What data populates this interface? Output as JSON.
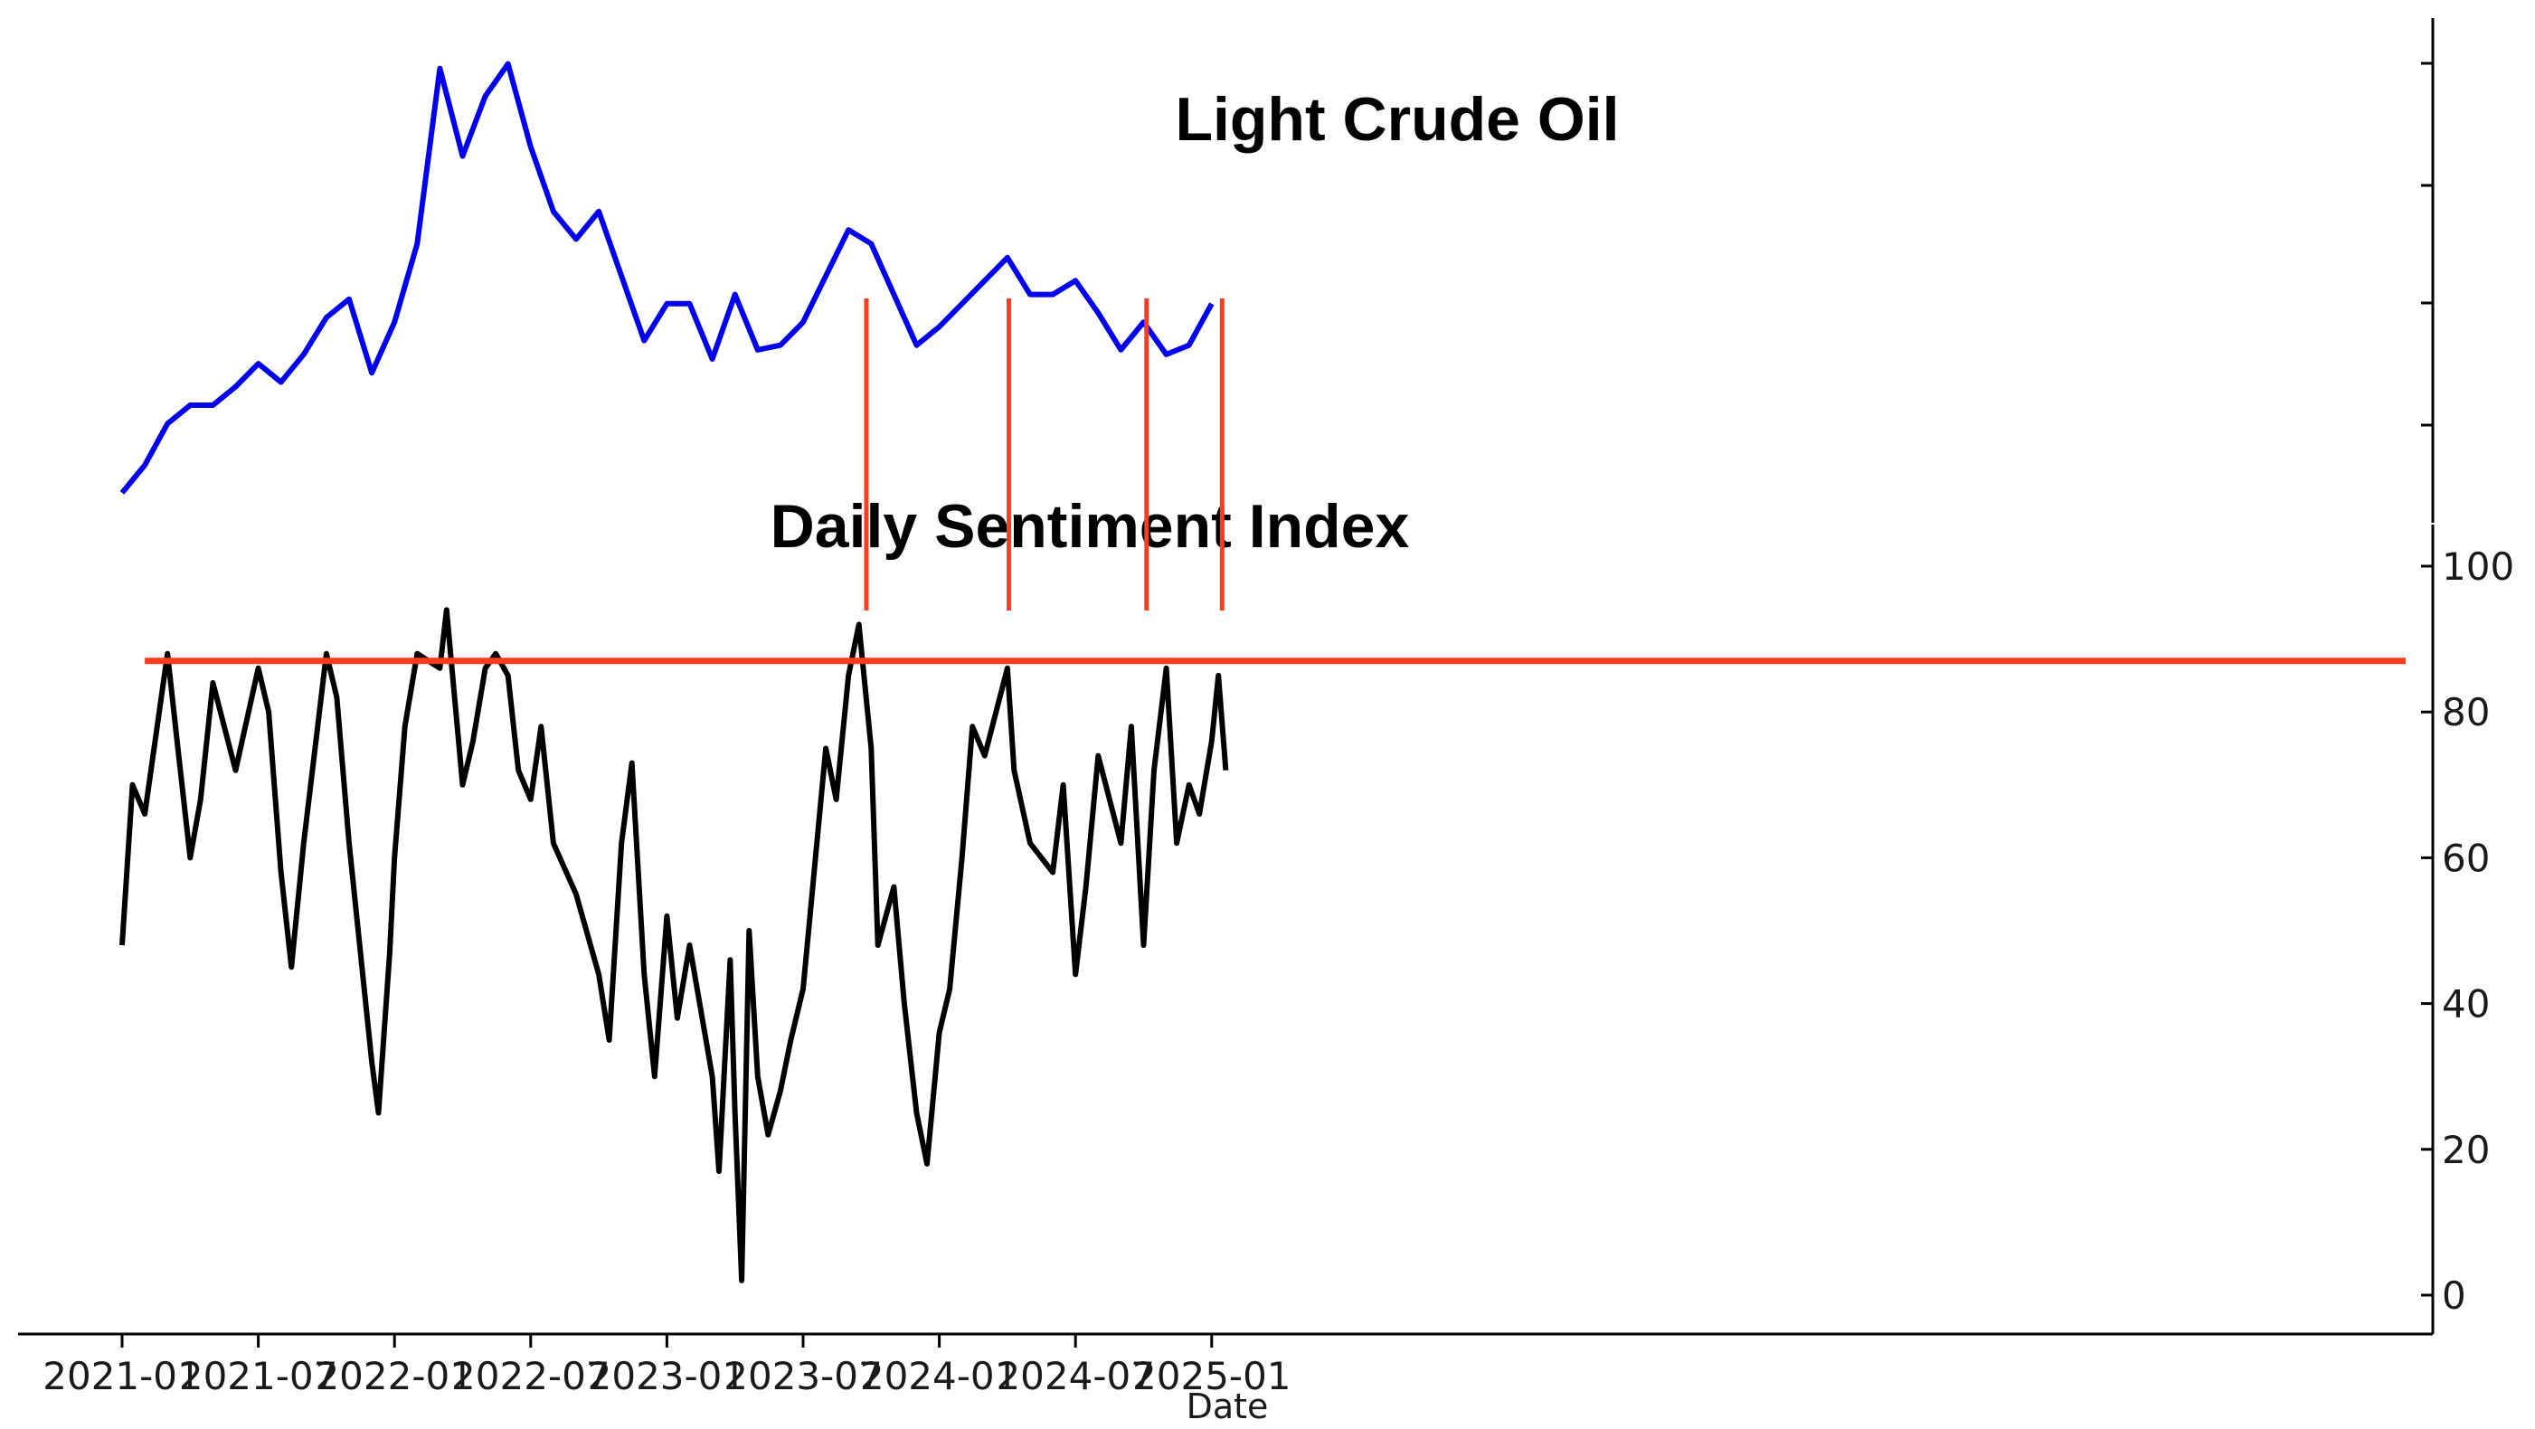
{
  "chart_data": {
    "type": "line",
    "title": "",
    "xlabel": "Date",
    "x_ticks": [
      "2021-01",
      "2021-07",
      "2022-01",
      "2022-07",
      "2023-01",
      "2023-07",
      "2024-01",
      "2024-07",
      "2025-01"
    ],
    "x_range": [
      "2021-01",
      "2025-02"
    ],
    "grid": false,
    "legend": "none",
    "panels": [
      {
        "name": "Light Crude Oil",
        "title": "Light Crude Oil",
        "color": "#0000ee",
        "y_axis": "right, unlabeled ticks",
        "y_ticks": [],
        "points": [
          [
            "2021-01",
            0.01
          ],
          [
            "2021-02",
            0.07
          ],
          [
            "2021-03",
            0.16
          ],
          [
            "2021-04",
            0.2
          ],
          [
            "2021-05",
            0.2
          ],
          [
            "2021-06",
            0.24
          ],
          [
            "2021-07",
            0.29
          ],
          [
            "2021-08",
            0.25
          ],
          [
            "2021-09",
            0.31
          ],
          [
            "2021-10",
            0.39
          ],
          [
            "2021-11",
            0.43
          ],
          [
            "2021-12",
            0.27
          ],
          [
            "2022-01",
            0.38
          ],
          [
            "2022-02",
            0.55
          ],
          [
            "2022-03",
            0.93
          ],
          [
            "2022-04",
            0.74
          ],
          [
            "2022-05",
            0.87
          ],
          [
            "2022-06",
            0.94
          ],
          [
            "2022-07",
            0.76
          ],
          [
            "2022-08",
            0.62
          ],
          [
            "2022-09",
            0.56
          ],
          [
            "2022-10",
            0.62
          ],
          [
            "2022-11",
            0.48
          ],
          [
            "2022-12",
            0.34
          ],
          [
            "2023-01",
            0.42
          ],
          [
            "2023-02",
            0.42
          ],
          [
            "2023-03",
            0.3
          ],
          [
            "2023-04",
            0.44
          ],
          [
            "2023-05",
            0.32
          ],
          [
            "2023-06",
            0.33
          ],
          [
            "2023-07",
            0.38
          ],
          [
            "2023-08",
            0.48
          ],
          [
            "2023-09",
            0.58
          ],
          [
            "2023-10",
            0.55
          ],
          [
            "2023-11",
            0.44
          ],
          [
            "2023-12",
            0.33
          ],
          [
            "2024-01",
            0.37
          ],
          [
            "2024-02",
            0.42
          ],
          [
            "2024-03",
            0.47
          ],
          [
            "2024-04",
            0.52
          ],
          [
            "2024-05",
            0.44
          ],
          [
            "2024-06",
            0.44
          ],
          [
            "2024-07",
            0.47
          ],
          [
            "2024-08",
            0.4
          ],
          [
            "2024-09",
            0.32
          ],
          [
            "2024-10",
            0.38
          ],
          [
            "2024-11",
            0.31
          ],
          [
            "2024-12",
            0.33
          ],
          [
            "2025-01",
            0.42
          ]
        ]
      },
      {
        "name": "Daily Sentiment Index",
        "title": "Daily Sentiment Index",
        "color": "#000000",
        "y_axis": "right",
        "ylim": [
          0,
          100
        ],
        "y_ticks": [
          0,
          20,
          40,
          60,
          80,
          100
        ],
        "points": [
          [
            "2021-01",
            48
          ],
          [
            "2021-01-15",
            70
          ],
          [
            "2021-02",
            66
          ],
          [
            "2021-03",
            88
          ],
          [
            "2021-03-15",
            75
          ],
          [
            "2021-04",
            60
          ],
          [
            "2021-04-15",
            68
          ],
          [
            "2021-05",
            84
          ],
          [
            "2021-06",
            72
          ],
          [
            "2021-07",
            86
          ],
          [
            "2021-07-15",
            80
          ],
          [
            "2021-08",
            58
          ],
          [
            "2021-08-15",
            45
          ],
          [
            "2021-09",
            62
          ],
          [
            "2021-10",
            88
          ],
          [
            "2021-10-15",
            82
          ],
          [
            "2021-11",
            62
          ],
          [
            "2021-12",
            32
          ],
          [
            "2021-12-10",
            25
          ],
          [
            "2021-12-25",
            47
          ],
          [
            "2022-01",
            60
          ],
          [
            "2022-01-15",
            78
          ],
          [
            "2022-02",
            88
          ],
          [
            "2022-03",
            86
          ],
          [
            "2022-03-10",
            94
          ],
          [
            "2022-04",
            70
          ],
          [
            "2022-04-15",
            76
          ],
          [
            "2022-05",
            86
          ],
          [
            "2022-05-15",
            88
          ],
          [
            "2022-06",
            85
          ],
          [
            "2022-06-15",
            72
          ],
          [
            "2022-07",
            68
          ],
          [
            "2022-07-15",
            78
          ],
          [
            "2022-08",
            62
          ],
          [
            "2022-09",
            55
          ],
          [
            "2022-10",
            44
          ],
          [
            "2022-10-15",
            35
          ],
          [
            "2022-11",
            62
          ],
          [
            "2022-11-15",
            73
          ],
          [
            "2022-12",
            44
          ],
          [
            "2022-12-15",
            30
          ],
          [
            "2023-01",
            52
          ],
          [
            "2023-01-15",
            38
          ],
          [
            "2023-02",
            48
          ],
          [
            "2023-03",
            30
          ],
          [
            "2023-03-10",
            17
          ],
          [
            "2023-03-25",
            46
          ],
          [
            "2023-04",
            25
          ],
          [
            "2023-04-10",
            2
          ],
          [
            "2023-04-20",
            50
          ],
          [
            "2023-05",
            30
          ],
          [
            "2023-05-15",
            22
          ],
          [
            "2023-06",
            28
          ],
          [
            "2023-06-15",
            35
          ],
          [
            "2023-07",
            42
          ],
          [
            "2023-08",
            75
          ],
          [
            "2023-08-15",
            68
          ],
          [
            "2023-09",
            85
          ],
          [
            "2023-09-15",
            92
          ],
          [
            "2023-10",
            75
          ],
          [
            "2023-10-10",
            48
          ],
          [
            "2023-11",
            56
          ],
          [
            "2023-11-15",
            40
          ],
          [
            "2023-12",
            25
          ],
          [
            "2023-12-15",
            18
          ],
          [
            "2024-01",
            36
          ],
          [
            "2024-01-15",
            42
          ],
          [
            "2024-02",
            60
          ],
          [
            "2024-02-15",
            78
          ],
          [
            "2024-03",
            74
          ],
          [
            "2024-04",
            86
          ],
          [
            "2024-04-10",
            72
          ],
          [
            "2024-05",
            62
          ],
          [
            "2024-06",
            58
          ],
          [
            "2024-06-15",
            70
          ],
          [
            "2024-07",
            44
          ],
          [
            "2024-07-15",
            56
          ],
          [
            "2024-08",
            74
          ],
          [
            "2024-09",
            62
          ],
          [
            "2024-09-15",
            78
          ],
          [
            "2024-10",
            48
          ],
          [
            "2024-10-15",
            72
          ],
          [
            "2024-11",
            86
          ],
          [
            "2024-11-15",
            62
          ],
          [
            "2024-12",
            70
          ],
          [
            "2024-12-15",
            66
          ],
          [
            "2025-01",
            76
          ],
          [
            "2025-01-10",
            85
          ],
          [
            "2025-01-20",
            72
          ]
        ]
      }
    ],
    "annotations": [
      {
        "type": "hline",
        "panel": "Daily Sentiment Index",
        "y": 87,
        "color": "#ff3b1f"
      },
      {
        "type": "vline",
        "x": "2023-09-25",
        "color": "#ff3b1f"
      },
      {
        "type": "vline",
        "x": "2024-04-03",
        "color": "#ff3b1f"
      },
      {
        "type": "vline",
        "x": "2024-10-05",
        "color": "#ff3b1f"
      },
      {
        "type": "vline",
        "x": "2025-01-15",
        "color": "#ff3b1f"
      }
    ]
  }
}
